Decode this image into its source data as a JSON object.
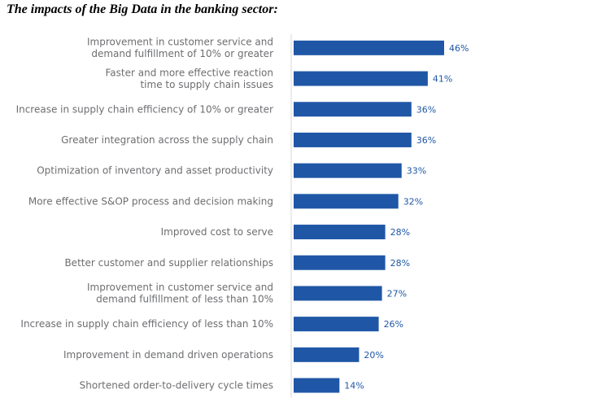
{
  "chart_data": {
    "type": "bar",
    "orientation": "horizontal",
    "title": "The impacts of the Big Data in the banking sector:",
    "categories": [
      [
        "Improvement in customer service and",
        "demand fulfillment of 10% or greater"
      ],
      [
        "Faster and more effective reaction",
        "time to supply chain issues"
      ],
      [
        "Increase in supply chain efficiency of 10% or greater"
      ],
      [
        "Greater integration across the supply chain"
      ],
      [
        "Optimization of inventory and asset productivity"
      ],
      [
        "More effective S&OP process and decision making"
      ],
      [
        "Improved cost to serve"
      ],
      [
        "Better customer and supplier relationships"
      ],
      [
        "Improvement in customer service and",
        "demand fulfillment of less than 10%"
      ],
      [
        "Increase in supply chain efficiency of less than 10%"
      ],
      [
        "Improvement in demand driven operations"
      ],
      [
        "Shortened order-to-delivery cycle times"
      ]
    ],
    "values": [
      46,
      41,
      36,
      36,
      33,
      32,
      28,
      28,
      27,
      26,
      20,
      14
    ],
    "value_labels": [
      "46%",
      "41%",
      "36%",
      "36%",
      "33%",
      "32%",
      "28%",
      "28%",
      "27%",
      "26%",
      "20%",
      "14%"
    ],
    "bar_color": "#1f57a6",
    "label_color": "#6d6e71",
    "xlim": [
      0,
      50
    ],
    "grid": false,
    "legend": "none"
  }
}
